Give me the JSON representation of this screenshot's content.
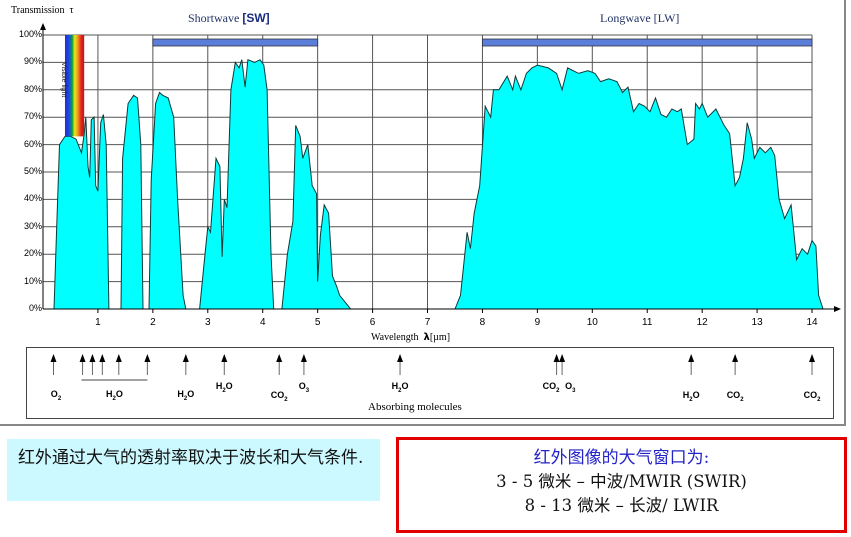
{
  "chart_data": {
    "type": "area",
    "title_left": "Shortwave",
    "title_left_tag": "[SW]",
    "title_right": "Longwave [LW]",
    "ylabel": "Transmission",
    "ylabel_symbol": "τ",
    "xlabel": "Wavelength",
    "xlabel_symbol": "λ",
    "xlabel_unit": "[µm]",
    "xlim": [
      0,
      14
    ],
    "ylim": [
      0,
      100
    ],
    "x_ticks": [
      "1",
      "2",
      "3",
      "4",
      "5",
      "6",
      "7",
      "8",
      "9",
      "10",
      "11",
      "12",
      "13",
      "14"
    ],
    "y_ticks": [
      "0%",
      "10%",
      "20%",
      "30%",
      "40%",
      "50%",
      "60%",
      "70%",
      "80%",
      "90%",
      "100%"
    ],
    "grid": true,
    "fill_color": "#00ffff",
    "bands": [
      {
        "name": "Shortwave [SW]",
        "from": 2,
        "to": 5,
        "color": "#5b7fd8"
      },
      {
        "name": "Longwave [LW]",
        "from": 8,
        "to": 14,
        "color": "#5b7fd8"
      }
    ],
    "visible_band": {
      "label": "Visible light",
      "from": 0.4,
      "to": 0.75
    },
    "series": [
      {
        "name": "Transmission",
        "points": [
          [
            0.2,
            0
          ],
          [
            0.25,
            30
          ],
          [
            0.3,
            60
          ],
          [
            0.4,
            63
          ],
          [
            0.5,
            63
          ],
          [
            0.6,
            62
          ],
          [
            0.7,
            57
          ],
          [
            0.75,
            64
          ],
          [
            0.78,
            70
          ],
          [
            0.82,
            52
          ],
          [
            0.85,
            48
          ],
          [
            0.88,
            69
          ],
          [
            0.93,
            70
          ],
          [
            0.96,
            45
          ],
          [
            1.0,
            43
          ],
          [
            1.05,
            68
          ],
          [
            1.1,
            71
          ],
          [
            1.15,
            60
          ],
          [
            1.2,
            0
          ],
          [
            1.25,
            0
          ],
          [
            1.42,
            0
          ],
          [
            1.45,
            55
          ],
          [
            1.55,
            75
          ],
          [
            1.65,
            78
          ],
          [
            1.72,
            77
          ],
          [
            1.78,
            60
          ],
          [
            1.82,
            0
          ],
          [
            1.85,
            0
          ],
          [
            1.93,
            0
          ],
          [
            1.97,
            47
          ],
          [
            2.05,
            75
          ],
          [
            2.12,
            79
          ],
          [
            2.18,
            78
          ],
          [
            2.28,
            77
          ],
          [
            2.38,
            70
          ],
          [
            2.45,
            40
          ],
          [
            2.55,
            5
          ],
          [
            2.6,
            0
          ],
          [
            2.72,
            0
          ],
          [
            2.85,
            0
          ],
          [
            2.95,
            20
          ],
          [
            3.0,
            30
          ],
          [
            3.05,
            28
          ],
          [
            3.15,
            55
          ],
          [
            3.22,
            52
          ],
          [
            3.26,
            19
          ],
          [
            3.3,
            40
          ],
          [
            3.35,
            37
          ],
          [
            3.42,
            80
          ],
          [
            3.5,
            90
          ],
          [
            3.57,
            88
          ],
          [
            3.62,
            91
          ],
          [
            3.68,
            81
          ],
          [
            3.73,
            91
          ],
          [
            3.85,
            90
          ],
          [
            3.95,
            91
          ],
          [
            4.02,
            89
          ],
          [
            4.08,
            80
          ],
          [
            4.15,
            20
          ],
          [
            4.2,
            0
          ],
          [
            4.35,
            0
          ],
          [
            4.45,
            20
          ],
          [
            4.55,
            32
          ],
          [
            4.6,
            67
          ],
          [
            4.68,
            63
          ],
          [
            4.73,
            55
          ],
          [
            4.82,
            60
          ],
          [
            4.9,
            45
          ],
          [
            4.98,
            42
          ],
          [
            5.0,
            10
          ],
          [
            5.05,
            27
          ],
          [
            5.12,
            38
          ],
          [
            5.2,
            35
          ],
          [
            5.27,
            12
          ],
          [
            5.35,
            8
          ],
          [
            5.4,
            5
          ],
          [
            5.6,
            0
          ],
          [
            7.5,
            0
          ],
          [
            7.6,
            5
          ],
          [
            7.72,
            28
          ],
          [
            7.78,
            22
          ],
          [
            7.85,
            35
          ],
          [
            7.95,
            45
          ],
          [
            8.05,
            74
          ],
          [
            8.15,
            70
          ],
          [
            8.2,
            80
          ],
          [
            8.3,
            80
          ],
          [
            8.45,
            85
          ],
          [
            8.55,
            80
          ],
          [
            8.6,
            85
          ],
          [
            8.7,
            80
          ],
          [
            8.8,
            86
          ],
          [
            8.9,
            88
          ],
          [
            9.0,
            89
          ],
          [
            9.2,
            88
          ],
          [
            9.35,
            86
          ],
          [
            9.45,
            80
          ],
          [
            9.55,
            88
          ],
          [
            9.75,
            86
          ],
          [
            9.92,
            87
          ],
          [
            10.05,
            86
          ],
          [
            10.15,
            83
          ],
          [
            10.3,
            84
          ],
          [
            10.45,
            83
          ],
          [
            10.55,
            79
          ],
          [
            10.65,
            81
          ],
          [
            10.75,
            72
          ],
          [
            10.85,
            75
          ],
          [
            10.95,
            74
          ],
          [
            11.05,
            72
          ],
          [
            11.15,
            77
          ],
          [
            11.25,
            71
          ],
          [
            11.35,
            70
          ],
          [
            11.45,
            73
          ],
          [
            11.55,
            72
          ],
          [
            11.62,
            73
          ],
          [
            11.73,
            60
          ],
          [
            11.85,
            62
          ],
          [
            11.88,
            75
          ],
          [
            11.95,
            73
          ],
          [
            12.0,
            75
          ],
          [
            12.1,
            70
          ],
          [
            12.25,
            73
          ],
          [
            12.4,
            67
          ],
          [
            12.5,
            64
          ],
          [
            12.6,
            45
          ],
          [
            12.68,
            48
          ],
          [
            12.75,
            55
          ],
          [
            12.82,
            68
          ],
          [
            12.9,
            62
          ],
          [
            12.95,
            55
          ],
          [
            13.05,
            59
          ],
          [
            13.15,
            57
          ],
          [
            13.25,
            59
          ],
          [
            13.32,
            56
          ],
          [
            13.4,
            40
          ],
          [
            13.5,
            33
          ],
          [
            13.62,
            38
          ],
          [
            13.72,
            18
          ],
          [
            13.82,
            22
          ],
          [
            13.92,
            20
          ],
          [
            14.0,
            25
          ],
          [
            14.07,
            23
          ],
          [
            14.12,
            5
          ],
          [
            14.2,
            0
          ]
        ]
      }
    ],
    "absorbing_molecules": [
      {
        "x": 0.2,
        "label": "O2",
        "base": "O",
        "sub": "2"
      },
      {
        "x": 0.9,
        "label": "H2O"
      },
      {
        "x": 1.1,
        "label": "H2O"
      },
      {
        "x": 1.4,
        "label": "H2O"
      },
      {
        "x": 1.9,
        "label": "H2O"
      },
      {
        "x": 1.1,
        "label": "H2O",
        "group": [
          0.9,
          1.9
        ],
        "base": "H",
        "sub": "2",
        "tail": "O"
      },
      {
        "x": 2.7,
        "label": "H2O",
        "base": "H",
        "sub": "2",
        "tail": "O"
      },
      {
        "x": 3.3,
        "label": "H2O",
        "base": "H",
        "sub": "2",
        "tail": "O"
      },
      {
        "x": 4.3,
        "label": "CO2",
        "base": "CO",
        "sub": "2"
      },
      {
        "x": 4.75,
        "label": "O3",
        "base": "O",
        "sub": "3"
      },
      {
        "x": 6.5,
        "label": "H2O",
        "base": "H",
        "sub": "2",
        "tail": "O"
      },
      {
        "x": 9.35,
        "label": "CO2",
        "base": "CO",
        "sub": "2"
      },
      {
        "x": 9.45,
        "label": "O3",
        "base": "O",
        "sub": "3"
      },
      {
        "x": 11.8,
        "label": "H2O",
        "base": "H",
        "sub": "2",
        "tail": "O"
      },
      {
        "x": 12.6,
        "label": "CO2",
        "base": "CO",
        "sub": "2"
      },
      {
        "x": 14.0,
        "label": "CO2",
        "base": "CO",
        "sub": "2"
      }
    ],
    "absorbing_label": "Absorbing molecules"
  },
  "notes": {
    "left": "红外通过大气的透射率取决于波长和大气条件.",
    "right_heading": "红外图像的大气窗口为:",
    "right_line1": "3 - 5 微米 – 中波/MWIR (SWIR)",
    "right_line2": "8 - 13 微米 – 长波/ LWIR"
  },
  "colors": {
    "curve_fill": "#00ffff",
    "band_bar": "#5b7fd8",
    "note_left_bg": "#ccf9ff",
    "note_right_border": "#e00000",
    "note_right_heading": "#2323c8"
  }
}
